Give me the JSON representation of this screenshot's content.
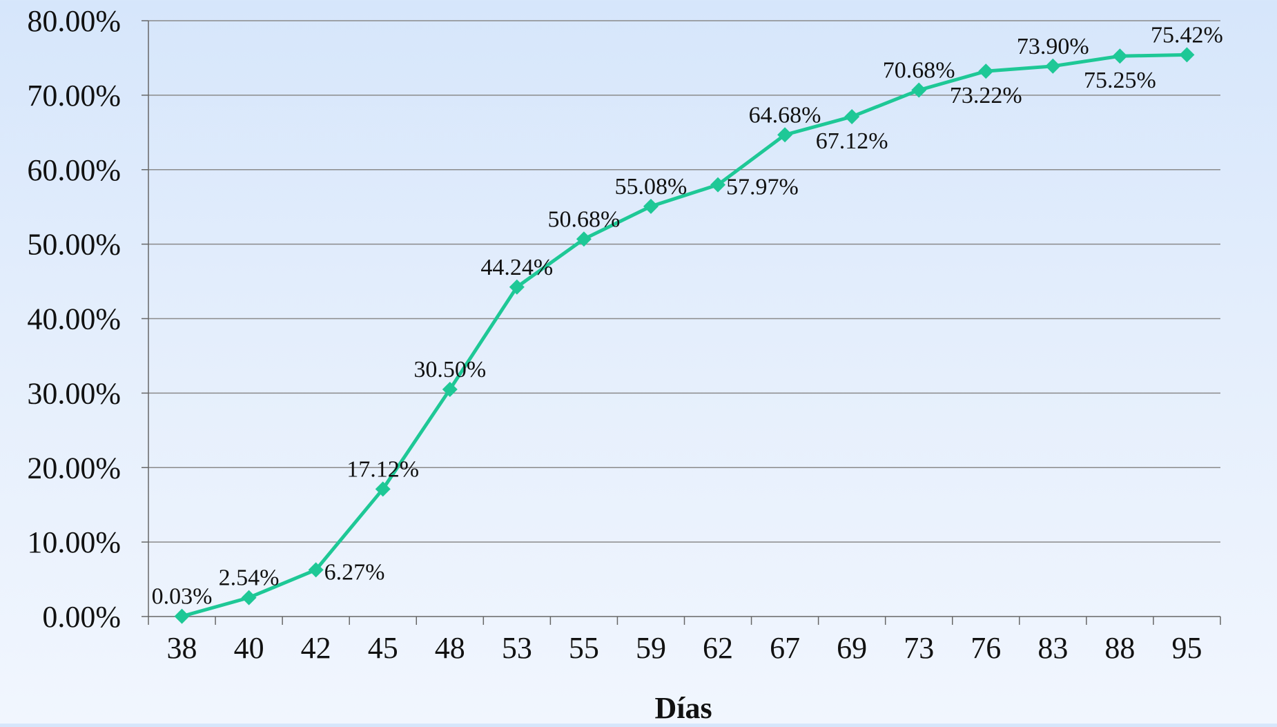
{
  "chart_data": {
    "type": "line",
    "title": "",
    "xlabel": "Días",
    "ylabel": "",
    "categories": [
      "38",
      "40",
      "42",
      "45",
      "48",
      "53",
      "55",
      "59",
      "62",
      "67",
      "69",
      "73",
      "76",
      "83",
      "88",
      "95"
    ],
    "series": [
      {
        "values": [
          0.03,
          2.54,
          6.27,
          17.12,
          30.5,
          44.24,
          50.68,
          55.08,
          57.97,
          64.68,
          67.12,
          70.68,
          73.22,
          73.9,
          75.25,
          75.42
        ],
        "labels": [
          "0.03%",
          "2.54%",
          "6.27%",
          "17.12%",
          "30.50%",
          "44.24%",
          "50.68%",
          "55.08%",
          "57.97%",
          "64.68%",
          "67.12%",
          "70.68%",
          "73.22%",
          "73.90%",
          "75.25%",
          "75.42%"
        ],
        "label_positions": [
          "above",
          "above",
          "right",
          "above",
          "above",
          "above",
          "above",
          "above",
          "right",
          "above",
          "below",
          "above",
          "below",
          "above",
          "below",
          "above"
        ],
        "color": "#1ec896",
        "marker": "diamond"
      }
    ],
    "ylim": [
      0,
      80
    ],
    "yticks": [
      "0.00%",
      "10.00%",
      "20.00%",
      "30.00%",
      "40.00%",
      "50.00%",
      "60.00%",
      "70.00%",
      "80.00%"
    ],
    "grid": true,
    "legend": "none"
  }
}
